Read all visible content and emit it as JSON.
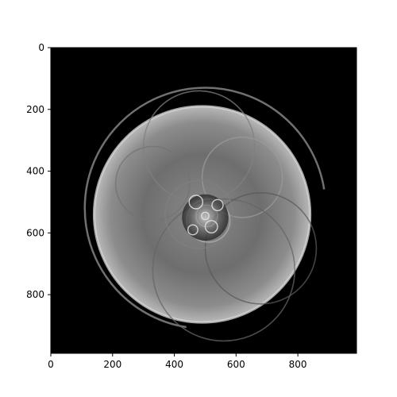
{
  "chart_data": {
    "type": "heatmap",
    "title": "",
    "xlabel": "",
    "ylabel": "",
    "colormap": "gray",
    "background_color": "#000000",
    "xlim": [
      0,
      990
    ],
    "ylim": [
      990,
      0
    ],
    "y_axis_inverted": true,
    "x_ticks": [
      0,
      200,
      400,
      600,
      800
    ],
    "y_ticks": [
      0,
      200,
      400,
      600,
      800
    ],
    "x_tick_labels": [
      "0",
      "200",
      "400",
      "600",
      "800"
    ],
    "y_tick_labels": [
      "0",
      "200",
      "400",
      "600",
      "800"
    ],
    "image_description": "grayscale reconstruction with nested circular shapes, large bright disk centered near (490, 540)",
    "features": [
      {
        "kind": "disk",
        "cx": 490,
        "cy": 540,
        "r": 350,
        "intensity": 0.38
      },
      {
        "kind": "ring",
        "cx": 490,
        "cy": 540,
        "r": 350,
        "intensity": 0.85
      },
      {
        "kind": "arc-ring",
        "cx": 500,
        "cy": 520,
        "r": 390,
        "intensity": 0.55
      },
      {
        "kind": "ring",
        "cx": 480,
        "cy": 320,
        "r": 180,
        "intensity": 0.5
      },
      {
        "kind": "ring",
        "cx": 330,
        "cy": 440,
        "r": 120,
        "intensity": 0.45
      },
      {
        "kind": "ring",
        "cx": 620,
        "cy": 420,
        "r": 130,
        "intensity": 0.6
      },
      {
        "kind": "ring",
        "cx": 560,
        "cy": 720,
        "r": 230,
        "intensity": 0.4
      },
      {
        "kind": "ring",
        "cx": 680,
        "cy": 650,
        "r": 180,
        "intensity": 0.35
      },
      {
        "kind": "ring",
        "cx": 480,
        "cy": 540,
        "r": 110,
        "intensity": 0.5
      },
      {
        "kind": "ring",
        "cx": 510,
        "cy": 560,
        "r": 70,
        "intensity": 0.7
      },
      {
        "kind": "ring",
        "cx": 505,
        "cy": 545,
        "r": 35,
        "intensity": 0.85
      }
    ]
  }
}
